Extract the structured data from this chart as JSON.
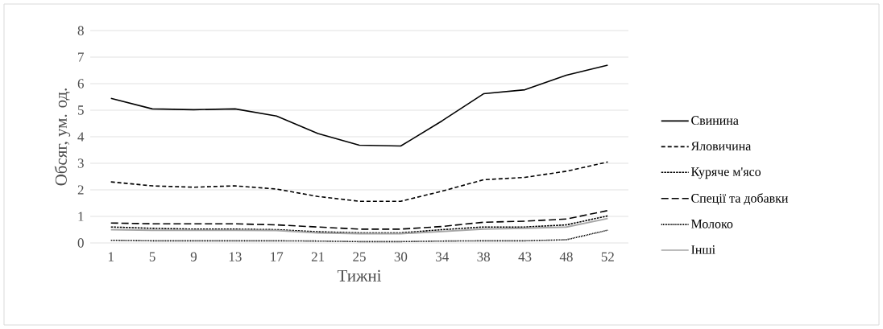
{
  "chart_data": {
    "type": "line",
    "xlabel": "Тижні",
    "ylabel": "Обсяг, ум. од.",
    "categories": [
      "1",
      "5",
      "9",
      "13",
      "17",
      "21",
      "25",
      "30",
      "34",
      "38",
      "43",
      "48",
      "52"
    ],
    "ylim": [
      0,
      8
    ],
    "yticks": [
      0,
      1,
      2,
      3,
      4,
      5,
      6,
      7,
      8
    ],
    "grid": "y",
    "legend": "right",
    "marker": "none",
    "series": [
      {
        "name": "Свинина",
        "color": "#000000",
        "line_style": "solid",
        "values": [
          5.45,
          5.05,
          5.02,
          5.05,
          4.78,
          4.12,
          3.68,
          3.65,
          4.6,
          5.62,
          5.77,
          6.32,
          6.7
        ]
      },
      {
        "name": "Яловичина",
        "color": "#000000",
        "line_style": "dashed",
        "values": [
          2.3,
          2.15,
          2.1,
          2.15,
          2.03,
          1.75,
          1.57,
          1.57,
          1.95,
          2.38,
          2.47,
          2.7,
          3.05
        ]
      },
      {
        "name": "Куряче м'ясо",
        "color": "#000000",
        "line_style": "dashed",
        "values": [
          0.6,
          0.55,
          0.52,
          0.52,
          0.5,
          0.42,
          0.38,
          0.38,
          0.5,
          0.6,
          0.6,
          0.68,
          1.02
        ]
      },
      {
        "name": "Спеції та добавки",
        "color": "#000000",
        "line_style": "dashed",
        "values": [
          0.75,
          0.72,
          0.72,
          0.72,
          0.68,
          0.6,
          0.52,
          0.52,
          0.62,
          0.78,
          0.82,
          0.9,
          1.22
        ]
      },
      {
        "name": "Молоко",
        "color": "#000000",
        "line_style": "dotted",
        "values": [
          0.1,
          0.08,
          0.08,
          0.08,
          0.08,
          0.07,
          0.05,
          0.05,
          0.07,
          0.08,
          0.08,
          0.12,
          0.48
        ]
      },
      {
        "name": "Інші",
        "color": "#a6a6a6",
        "line_style": "solid",
        "values": [
          0.5,
          0.48,
          0.48,
          0.48,
          0.47,
          0.38,
          0.35,
          0.35,
          0.43,
          0.52,
          0.55,
          0.6,
          0.92
        ]
      }
    ]
  }
}
